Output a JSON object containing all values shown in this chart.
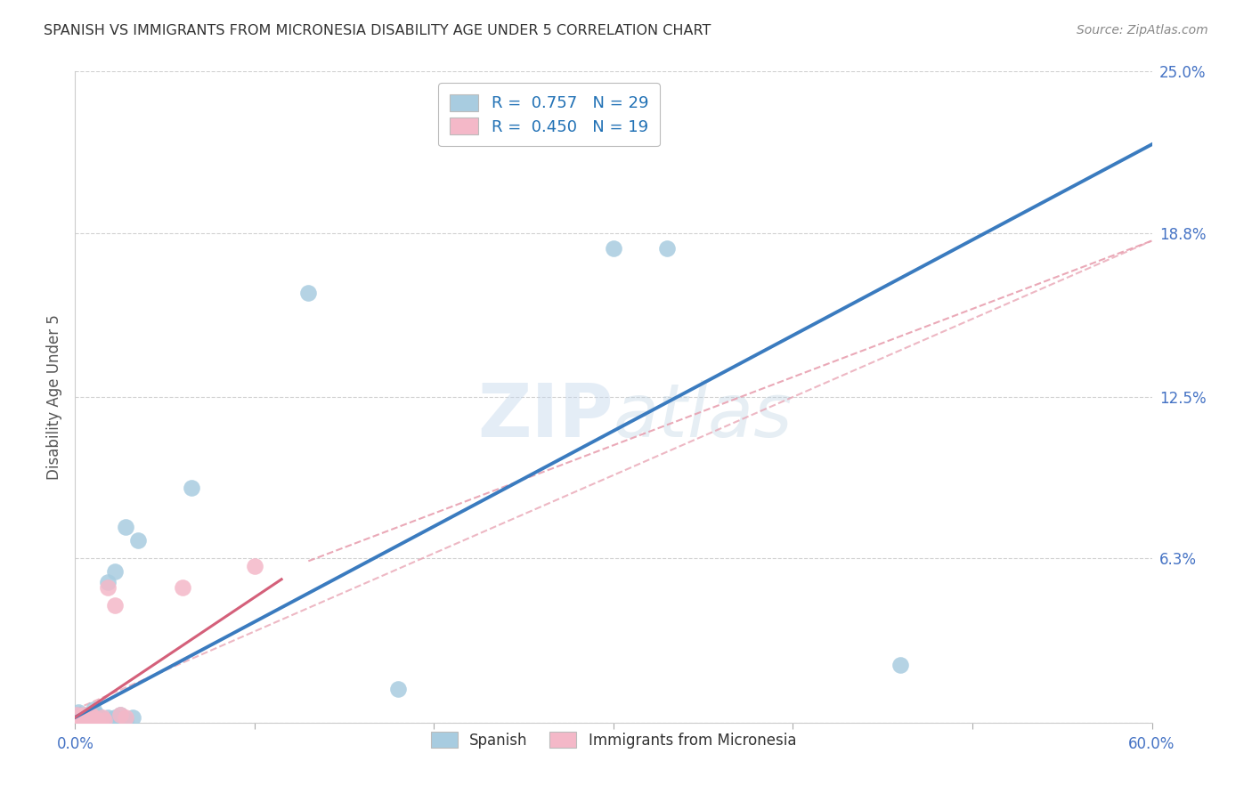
{
  "title": "SPANISH VS IMMIGRANTS FROM MICRONESIA DISABILITY AGE UNDER 5 CORRELATION CHART",
  "source": "Source: ZipAtlas.com",
  "ylabel": "Disability Age Under 5",
  "xlim": [
    0.0,
    0.6
  ],
  "ylim": [
    0.0,
    0.25
  ],
  "xticks": [
    0.0,
    0.1,
    0.2,
    0.3,
    0.4,
    0.5,
    0.6
  ],
  "xticklabels": [
    "0.0%",
    "",
    "",
    "",
    "",
    "",
    "60.0%"
  ],
  "ytick_positions": [
    0.0,
    0.063,
    0.125,
    0.188,
    0.25
  ],
  "ytick_labels": [
    "",
    "6.3%",
    "12.5%",
    "18.8%",
    "25.0%"
  ],
  "watermark": "ZIPatlas",
  "legend_r1": "R =  0.757",
  "legend_n1": "N = 29",
  "legend_r2": "R =  0.450",
  "legend_n2": "N = 19",
  "blue_color": "#a8cce0",
  "pink_color": "#f4b8c8",
  "blue_line_color": "#3a7bbf",
  "pink_line_color": "#d4607a",
  "pink_dashed_color": "#e8a0b0",
  "blue_scatter": [
    [
      0.001,
      0.003
    ],
    [
      0.002,
      0.004
    ],
    [
      0.003,
      0.002
    ],
    [
      0.004,
      0.001
    ],
    [
      0.005,
      0.003
    ],
    [
      0.006,
      0.002
    ],
    [
      0.007,
      0.001
    ],
    [
      0.009,
      0.002
    ],
    [
      0.01,
      0.005
    ],
    [
      0.012,
      0.003
    ],
    [
      0.013,
      0.002
    ],
    [
      0.015,
      0.001
    ],
    [
      0.016,
      0.001
    ],
    [
      0.018,
      0.002
    ],
    [
      0.02,
      0.001
    ],
    [
      0.022,
      0.002
    ],
    [
      0.025,
      0.003
    ],
    [
      0.028,
      0.001
    ],
    [
      0.032,
      0.002
    ],
    [
      0.018,
      0.054
    ],
    [
      0.022,
      0.058
    ],
    [
      0.035,
      0.07
    ],
    [
      0.028,
      0.075
    ],
    [
      0.065,
      0.09
    ],
    [
      0.13,
      0.165
    ],
    [
      0.18,
      0.013
    ],
    [
      0.3,
      0.182
    ],
    [
      0.33,
      0.182
    ],
    [
      0.46,
      0.022
    ]
  ],
  "pink_scatter": [
    [
      0.001,
      0.003
    ],
    [
      0.002,
      0.002
    ],
    [
      0.003,
      0.001
    ],
    [
      0.004,
      0.002
    ],
    [
      0.005,
      0.003
    ],
    [
      0.006,
      0.001
    ],
    [
      0.007,
      0.002
    ],
    [
      0.008,
      0.001
    ],
    [
      0.009,
      0.003
    ],
    [
      0.01,
      0.002
    ],
    [
      0.012,
      0.001
    ],
    [
      0.015,
      0.002
    ],
    [
      0.016,
      0.001
    ],
    [
      0.018,
      0.052
    ],
    [
      0.022,
      0.045
    ],
    [
      0.025,
      0.003
    ],
    [
      0.028,
      0.002
    ],
    [
      0.06,
      0.052
    ],
    [
      0.1,
      0.06
    ]
  ],
  "blue_line": [
    [
      0.0,
      0.002
    ],
    [
      0.6,
      0.222
    ]
  ],
  "pink_solid_line": [
    [
      0.0,
      0.002
    ],
    [
      0.115,
      0.055
    ]
  ],
  "pink_dashed_line": [
    [
      0.13,
      0.062
    ],
    [
      0.6,
      0.185
    ]
  ],
  "background_color": "#ffffff",
  "grid_color": "#cccccc",
  "title_color": "#333333",
  "axis_label_color": "#4472c4",
  "tick_color": "#4472c4",
  "legend_label1": "Spanish",
  "legend_label2": "Immigrants from Micronesia"
}
